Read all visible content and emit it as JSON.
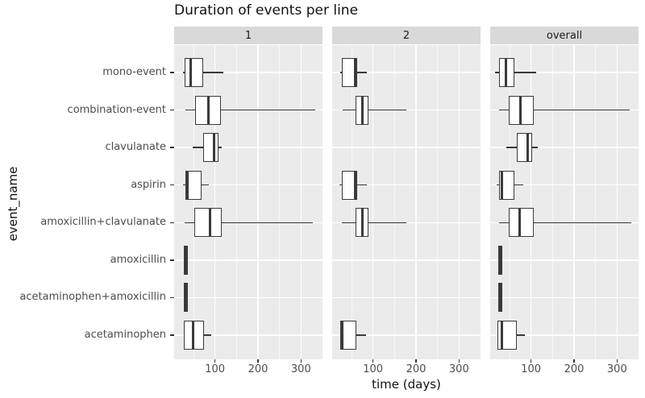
{
  "title": "Duration of events per line",
  "axes": {
    "x_title": "time (days)",
    "y_title": "event_name",
    "x_tick_labels": [
      "100",
      "200",
      "300"
    ]
  },
  "colors": {
    "panel_bg": "#EBEBEB",
    "strip_bg": "#D9D9D9",
    "grid": "#FFFFFF",
    "box_stroke": "#3A3A3A",
    "box_fill": "#FFFFFF",
    "axis_text": "#4D4D4D",
    "title_text": "#111111"
  },
  "chart_data": {
    "type": "boxplot",
    "orientation": "horizontal",
    "title": "Duration of events per line",
    "xlabel": "time (days)",
    "ylabel": "event_name",
    "x_ticks": [
      100,
      200,
      300
    ],
    "x_minor_ticks": [
      50,
      150,
      250,
      350
    ],
    "x_domain": [
      5,
      350
    ],
    "grid": "on",
    "categories": [
      "mono-event",
      "combination-event",
      "clavulanate",
      "aspirin",
      "amoxicillin+clavulanate",
      "amoxicillin",
      "acetaminophen+amoxicillin",
      "acetaminophen"
    ],
    "facets": [
      "1",
      "2",
      "overall"
    ],
    "panels": [
      {
        "facet": "1",
        "boxes": [
          {
            "category": "mono-event",
            "stats": {
              "min": 26,
              "q1": 29,
              "median": 44,
              "q3": 72,
              "max": 120
            }
          },
          {
            "category": "combination-event",
            "stats": {
              "min": 31,
              "q1": 54,
              "median": 85,
              "q3": 114,
              "max": 334
            }
          },
          {
            "category": "clavulanate",
            "stats": {
              "min": 48,
              "q1": 72,
              "median": 98,
              "q3": 109,
              "max": 116
            }
          },
          {
            "category": "aspirin",
            "stats": {
              "min": 26,
              "q1": 31,
              "median": 35,
              "q3": 69,
              "max": 85
            }
          },
          {
            "category": "amoxicillin+clavulanate",
            "stats": {
              "min": 30,
              "q1": 52,
              "median": 88,
              "q3": 115,
              "max": 327
            }
          },
          {
            "category": "amoxicillin",
            "degenerate": true,
            "stats": {
              "min": 30,
              "q1": 30,
              "median": 32,
              "q3": 34,
              "max": 34
            }
          },
          {
            "category": "acetaminophen+amoxicillin",
            "degenerate": true,
            "stats": {
              "min": 31,
              "q1": 31,
              "median": 33,
              "q3": 35,
              "max": 35
            }
          },
          {
            "category": "acetaminophen",
            "stats": {
              "min": 27,
              "q1": 27,
              "median": 49,
              "q3": 74,
              "max": 91
            }
          }
        ]
      },
      {
        "facet": "2",
        "boxes": [
          {
            "category": "mono-event",
            "stats": {
              "min": 23,
              "q1": 27,
              "median": 58,
              "q3": 63,
              "max": 85
            }
          },
          {
            "category": "combination-event",
            "stats": {
              "min": 30,
              "q1": 59,
              "median": 75,
              "q3": 89,
              "max": 178
            }
          },
          {
            "category": "clavulanate",
            "stats": null
          },
          {
            "category": "aspirin",
            "stats": {
              "min": 22,
              "q1": 27,
              "median": 58,
              "q3": 63,
              "max": 85
            }
          },
          {
            "category": "amoxicillin+clavulanate",
            "stats": {
              "min": 28,
              "q1": 59,
              "median": 76,
              "q3": 89,
              "max": 178
            }
          },
          {
            "category": "amoxicillin",
            "stats": null
          },
          {
            "category": "acetaminophen+amoxicillin",
            "stats": null
          },
          {
            "category": "acetaminophen",
            "stats": {
              "min": 24,
              "q1": 24,
              "median": 29,
              "q3": 61,
              "max": 83
            }
          }
        ]
      },
      {
        "facet": "overall",
        "boxes": [
          {
            "category": "mono-event",
            "stats": {
              "min": 16,
              "q1": 25,
              "median": 41,
              "q3": 61,
              "max": 112
            }
          },
          {
            "category": "combination-event",
            "stats": {
              "min": 26,
              "q1": 48,
              "median": 76,
              "q3": 107,
              "max": 329
            }
          },
          {
            "category": "clavulanate",
            "stats": {
              "min": 43,
              "q1": 67,
              "median": 92,
              "q3": 103,
              "max": 116
            }
          },
          {
            "category": "aspirin",
            "stats": {
              "min": 20,
              "q1": 26,
              "median": 32,
              "q3": 61,
              "max": 81
            }
          },
          {
            "category": "amoxicillin+clavulanate",
            "stats": {
              "min": 26,
              "q1": 48,
              "median": 74,
              "q3": 107,
              "max": 333
            }
          },
          {
            "category": "amoxicillin",
            "degenerate": true,
            "stats": {
              "min": 27,
              "q1": 27,
              "median": 29,
              "q3": 31,
              "max": 31
            }
          },
          {
            "category": "acetaminophen+amoxicillin",
            "degenerate": true,
            "stats": {
              "min": 27,
              "q1": 27,
              "median": 29,
              "q3": 31,
              "max": 31
            }
          },
          {
            "category": "acetaminophen",
            "stats": {
              "min": 21,
              "q1": 21,
              "median": 32,
              "q3": 67,
              "max": 85
            }
          }
        ]
      }
    ]
  }
}
